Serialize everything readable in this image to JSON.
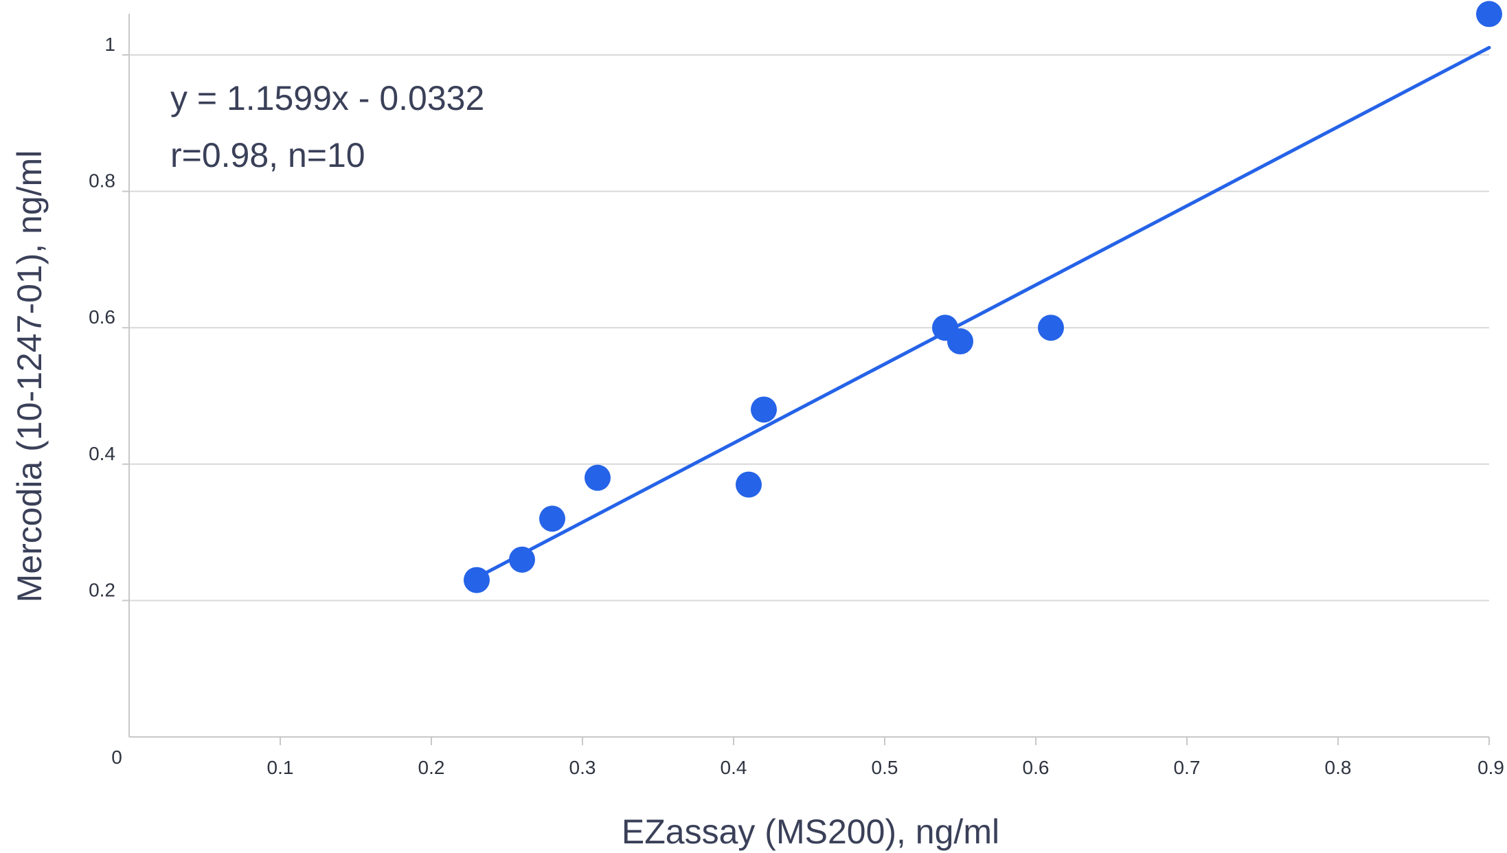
{
  "chart_data": {
    "type": "scatter",
    "title": "",
    "xlabel": "EZassay (MS200), ng/ml",
    "ylabel": "Mercodia (10-1247-01), ng/ml",
    "xlim": [
      0,
      0.9
    ],
    "ylim": [
      0,
      1.0
    ],
    "x_ticks": [
      "0.1",
      "0.2",
      "0.3",
      "0.4",
      "0.5",
      "0.6",
      "0.7",
      "0.8",
      "0.9"
    ],
    "y_ticks": [
      "0.2",
      "0.4",
      "0.6",
      "0.8",
      "1"
    ],
    "origin_label": "0",
    "grid": true,
    "grid_axis": "y",
    "legend": "none",
    "point_color": "#2563e8",
    "line_color": "#2563e8",
    "points": [
      {
        "x": 0.23,
        "y": 0.23
      },
      {
        "x": 0.26,
        "y": 0.26
      },
      {
        "x": 0.28,
        "y": 0.32
      },
      {
        "x": 0.31,
        "y": 0.38
      },
      {
        "x": 0.41,
        "y": 0.37
      },
      {
        "x": 0.42,
        "y": 0.48
      },
      {
        "x": 0.54,
        "y": 0.6
      },
      {
        "x": 0.55,
        "y": 0.58
      },
      {
        "x": 0.61,
        "y": 0.6
      },
      {
        "x": 0.9,
        "y": 1.06
      }
    ],
    "trendline": {
      "slope": 1.1599,
      "intercept": -0.0332,
      "x_range": [
        0.23,
        0.9
      ]
    },
    "annotations": [
      "y = 1.1599x - 0.0332",
      "r=0.98, n=10"
    ]
  }
}
